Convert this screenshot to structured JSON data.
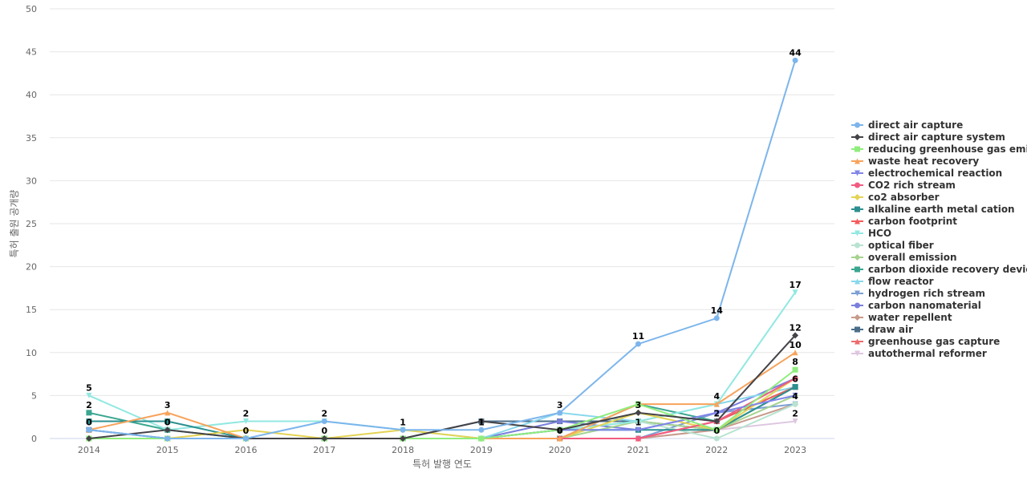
{
  "chart_data": {
    "type": "line",
    "xlabel": "특허 발행 연도",
    "ylabel": "특허 출원 공개량",
    "ylim": [
      0,
      50
    ],
    "yticks": [
      0,
      5,
      10,
      15,
      20,
      25,
      30,
      35,
      40,
      45,
      50
    ],
    "x": [
      "2014",
      "2015",
      "2016",
      "2017",
      "2018",
      "2019",
      "2020",
      "2021",
      "2022",
      "2023"
    ],
    "grid": true,
    "legend_position": "right",
    "series": [
      {
        "name": "direct air capture",
        "color": "#7cb5ec",
        "marker": "circle",
        "values": [
          1,
          0,
          0,
          2,
          1,
          1,
          3,
          11,
          14,
          44
        ]
      },
      {
        "name": "direct air capture system",
        "color": "#434348",
        "marker": "diamond",
        "values": [
          0,
          1,
          0,
          0,
          0,
          2,
          1,
          3,
          2,
          12
        ]
      },
      {
        "name": "reducing greenhouse gas emi...",
        "color": "#90ed7d",
        "marker": "square",
        "values": [
          0,
          0,
          0,
          0,
          0,
          0,
          1,
          4,
          1,
          8
        ]
      },
      {
        "name": "waste heat recovery",
        "color": "#f7a35c",
        "marker": "triangle",
        "values": [
          1,
          3,
          0,
          0,
          0,
          0,
          0,
          4,
          4,
          10
        ]
      },
      {
        "name": "electrochemical reaction",
        "color": "#8085e9",
        "marker": "triangle-down",
        "values": [
          0,
          0,
          0,
          0,
          0,
          0,
          1,
          1,
          3,
          5
        ]
      },
      {
        "name": "CO2 rich stream",
        "color": "#f15c80",
        "marker": "circle",
        "values": [
          0,
          0,
          0,
          0,
          0,
          0,
          0,
          0,
          2,
          7
        ]
      },
      {
        "name": "co2 absorber",
        "color": "#e4d354",
        "marker": "diamond",
        "values": [
          0,
          0,
          1,
          0,
          1,
          0,
          0,
          3,
          1,
          7
        ]
      },
      {
        "name": "alkaline earth metal cation",
        "color": "#2b908f",
        "marker": "square",
        "values": [
          2,
          2,
          0,
          0,
          0,
          0,
          1,
          1,
          1,
          6
        ]
      },
      {
        "name": "carbon footprint",
        "color": "#f45b5b",
        "marker": "triangle",
        "values": [
          0,
          0,
          0,
          0,
          0,
          0,
          0,
          0,
          2,
          6
        ]
      },
      {
        "name": "HCO",
        "color": "#91e8e1",
        "marker": "triangle-down",
        "values": [
          5,
          1,
          2,
          2,
          1,
          0,
          1,
          2,
          4,
          17
        ]
      },
      {
        "name": "optical fiber",
        "color": "#b8e3d0",
        "marker": "circle",
        "values": [
          0,
          0,
          0,
          0,
          0,
          0,
          1,
          2,
          0,
          4
        ]
      },
      {
        "name": "overall emission",
        "color": "#a6d38f",
        "marker": "diamond",
        "values": [
          0,
          0,
          0,
          0,
          0,
          0,
          0,
          2,
          1,
          5
        ]
      },
      {
        "name": "carbon dioxide recovery device",
        "color": "#3aa690",
        "marker": "square",
        "values": [
          3,
          1,
          0,
          0,
          0,
          0,
          0,
          4,
          2,
          6
        ]
      },
      {
        "name": "flow reactor",
        "color": "#88d8ec",
        "marker": "triangle",
        "values": [
          0,
          0,
          0,
          0,
          0,
          0,
          3,
          2,
          4,
          6
        ]
      },
      {
        "name": "hydrogen rich stream",
        "color": "#7b9fd4",
        "marker": "triangle-down",
        "values": [
          1,
          0,
          0,
          0,
          0,
          0,
          0,
          0,
          3,
          4
        ]
      },
      {
        "name": "carbon nanomaterial",
        "color": "#7a7fdc",
        "marker": "circle",
        "values": [
          0,
          0,
          0,
          0,
          0,
          0,
          2,
          1,
          3,
          7
        ]
      },
      {
        "name": "water repellent",
        "color": "#c79a8a",
        "marker": "diamond",
        "values": [
          0,
          0,
          0,
          0,
          0,
          0,
          0,
          0,
          1,
          4
        ]
      },
      {
        "name": "draw air",
        "color": "#4a6e8a",
        "marker": "square",
        "values": [
          1,
          0,
          0,
          0,
          0,
          2,
          2,
          2,
          1,
          6
        ]
      },
      {
        "name": "greenhouse gas capture",
        "color": "#ec6b6b",
        "marker": "triangle",
        "values": [
          0,
          0,
          0,
          0,
          0,
          0,
          0,
          0,
          2,
          6
        ]
      },
      {
        "name": "autothermal reformer",
        "color": "#ddc6e0",
        "marker": "triangle-down",
        "values": [
          0,
          0,
          0,
          0,
          0,
          0,
          0,
          0,
          1,
          2
        ]
      }
    ],
    "point_labels": [
      {
        "x": "2014",
        "text": "5",
        "value": 5
      },
      {
        "x": "2014",
        "text": "2",
        "value": 3
      },
      {
        "x": "2014",
        "text": "0",
        "value": 1
      },
      {
        "x": "2015",
        "text": "3",
        "value": 3
      },
      {
        "x": "2015",
        "text": "0",
        "value": 1
      },
      {
        "x": "2016",
        "text": "2",
        "value": 2
      },
      {
        "x": "2016",
        "text": "0",
        "value": 0
      },
      {
        "x": "2017",
        "text": "2",
        "value": 2
      },
      {
        "x": "2017",
        "text": "0",
        "value": 0
      },
      {
        "x": "2018",
        "text": "1",
        "value": 1
      },
      {
        "x": "2019",
        "text": "1",
        "value": 1
      },
      {
        "x": "2020",
        "text": "3",
        "value": 3
      },
      {
        "x": "2020",
        "text": "0",
        "value": 0
      },
      {
        "x": "2021",
        "text": "11",
        "value": 11
      },
      {
        "x": "2021",
        "text": "3",
        "value": 3
      },
      {
        "x": "2021",
        "text": "1",
        "value": 1
      },
      {
        "x": "2022",
        "text": "14",
        "value": 14
      },
      {
        "x": "2022",
        "text": "4",
        "value": 4
      },
      {
        "x": "2022",
        "text": "2",
        "value": 2
      },
      {
        "x": "2022",
        "text": "0",
        "value": 0
      },
      {
        "x": "2023",
        "text": "44",
        "value": 44
      },
      {
        "x": "2023",
        "text": "17",
        "value": 17
      },
      {
        "x": "2023",
        "text": "12",
        "value": 12
      },
      {
        "x": "2023",
        "text": "10",
        "value": 10
      },
      {
        "x": "2023",
        "text": "8",
        "value": 8
      },
      {
        "x": "2023",
        "text": "6",
        "value": 6
      },
      {
        "x": "2023",
        "text": "4",
        "value": 4
      },
      {
        "x": "2023",
        "text": "2",
        "value": 2
      }
    ]
  }
}
